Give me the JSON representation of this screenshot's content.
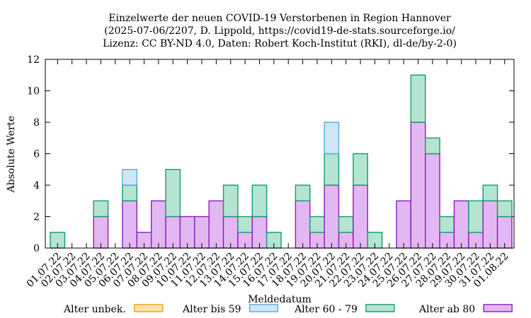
{
  "chart_data": {
    "type": "bar",
    "stacked": true,
    "title": [
      "Einzelwerte der neuen COVID-19 Verstorbenen in Region Hannover",
      "(2025-07-06/2207, D. Lippold, https://covid19-de-stats.sourceforge.io/",
      "Lizenz: CC BY-ND 4.0, Daten: Robert Koch-Institut (RKI), dl-de/by-2-0)"
    ],
    "xlabel": "Meldedatum",
    "ylabel": "Absolute Werte",
    "ylim": [
      0,
      12
    ],
    "yticks": [
      0,
      2,
      4,
      6,
      8,
      10,
      12
    ],
    "grid": false,
    "legend_position": "bottom",
    "categories": [
      "01.07.22",
      "02.07.22",
      "03.07.22",
      "04.07.22",
      "05.07.22",
      "06.07.22",
      "07.07.22",
      "08.07.22",
      "09.07.22",
      "10.07.22",
      "11.07.22",
      "12.07.22",
      "13.07.22",
      "14.07.22",
      "15.07.22",
      "16.07.22",
      "17.07.22",
      "18.07.22",
      "19.07.22",
      "20.07.22",
      "21.07.22",
      "22.07.22",
      "23.07.22",
      "24.07.22",
      "25.07.22",
      "26.07.22",
      "27.07.22",
      "28.07.22",
      "29.07.22",
      "30.07.22",
      "31.07.22",
      "01.08.22"
    ],
    "series": [
      {
        "name": "Alter unbek.",
        "fill": "#fde3a7",
        "stroke": "#e8a317",
        "values": [
          0,
          0,
          0,
          0,
          0,
          0,
          0,
          0,
          0,
          0,
          0,
          0,
          0,
          0,
          0,
          0,
          0,
          0,
          0,
          0,
          0,
          0,
          0,
          0,
          0,
          0,
          0,
          0,
          0,
          0,
          0,
          0
        ]
      },
      {
        "name": "Alter bis 59",
        "fill": "#cfe6f7",
        "stroke": "#5aa9dd",
        "values": [
          0,
          0,
          0,
          0,
          0,
          1,
          0,
          0,
          0,
          0,
          0,
          0,
          0,
          0,
          0,
          0,
          0,
          0,
          0,
          2,
          0,
          0,
          0,
          0,
          0,
          0,
          0,
          0,
          0,
          0,
          0,
          0
        ]
      },
      {
        "name": "Alter 60 - 79",
        "fill": "#b5e4d3",
        "stroke": "#159a6e",
        "values": [
          1,
          0,
          0,
          1,
          0,
          1,
          0,
          0,
          3,
          0,
          0,
          0,
          2,
          1,
          2,
          1,
          0,
          1,
          1,
          2,
          1,
          2,
          1,
          0,
          0,
          3,
          1,
          1,
          0,
          2,
          1,
          1
        ]
      },
      {
        "name": "Alter ab 80",
        "fill": "#e3b8f2",
        "stroke": "#8a1db5",
        "values": [
          0,
          0,
          0,
          2,
          0,
          3,
          1,
          3,
          2,
          2,
          2,
          3,
          2,
          1,
          2,
          0,
          0,
          3,
          1,
          4,
          1,
          4,
          0,
          0,
          3,
          8,
          6,
          1,
          3,
          1,
          3,
          2
        ]
      }
    ]
  }
}
